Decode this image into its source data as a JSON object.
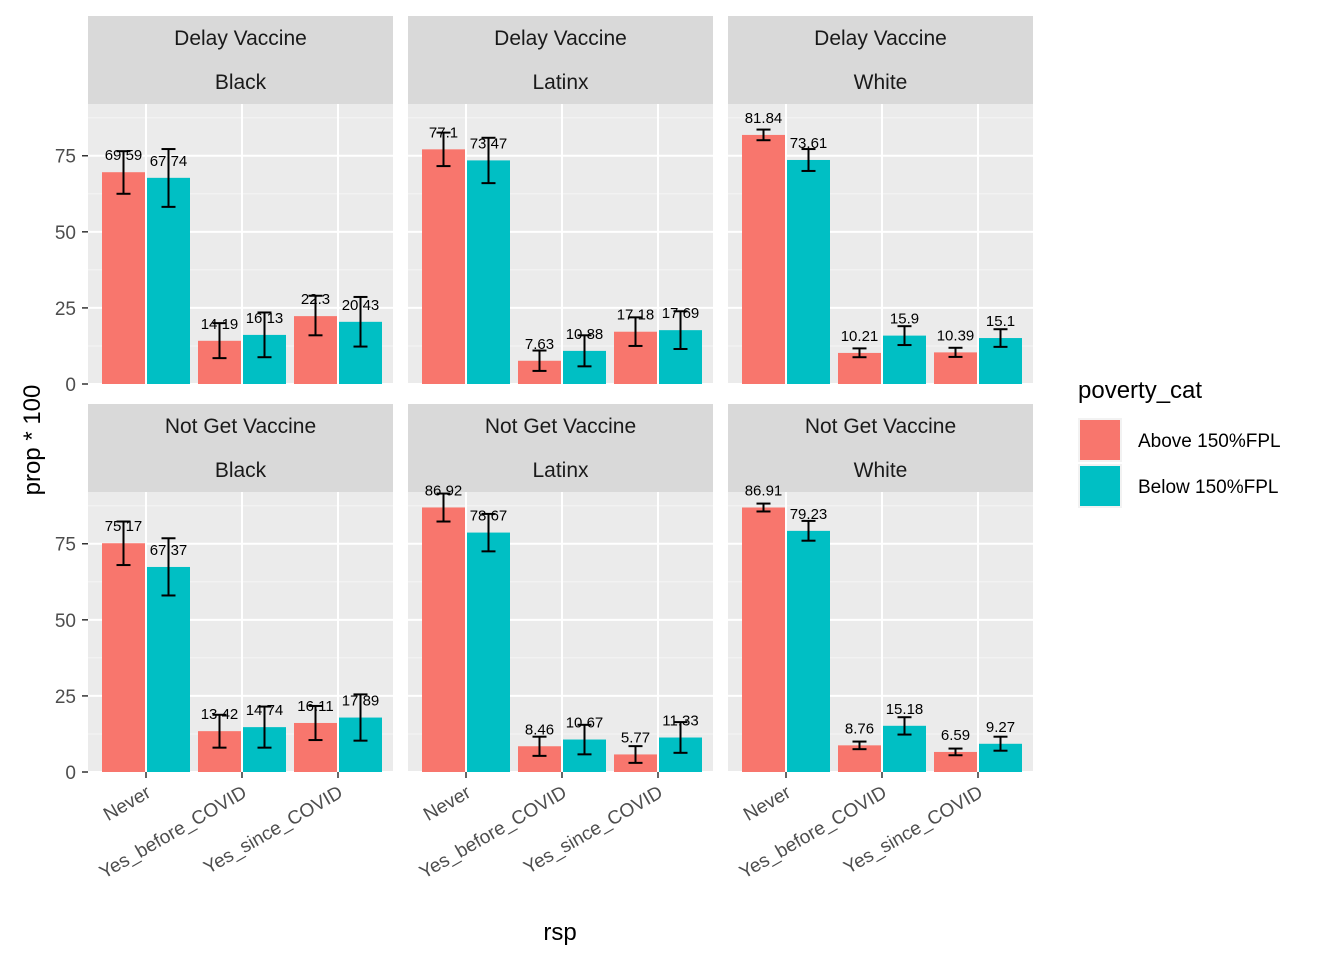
{
  "chart_data": {
    "type": "bar",
    "facet_rows": [
      "Delay Vaccine",
      "Not Get Vaccine"
    ],
    "facet_cols": [
      "Black",
      "Latinx",
      "White"
    ],
    "categories": [
      "Never",
      "Yes_before_COVID",
      "Yes_since_COVID"
    ],
    "xlabel": "rsp",
    "ylabel": "prop * 100",
    "ylim": [
      0,
      92
    ],
    "yticks": [
      0,
      25,
      50,
      75
    ],
    "legend": {
      "title": "poverty_cat",
      "position": "right",
      "entries": [
        "Above 150%FPL",
        "Below 150%FPL"
      ]
    },
    "colors": {
      "Above 150%FPL": "#F8766D",
      "Below 150%FPL": "#00BFC4"
    },
    "grid": true,
    "panels": [
      {
        "row": "Delay Vaccine",
        "col": "Black",
        "series": [
          {
            "name": "Above 150%FPL",
            "values": [
              69.59,
              14.19,
              22.3
            ],
            "labels": [
              "69.59",
              "14.19",
              "22.3"
            ],
            "err_low": [
              62.5,
              8.5,
              16
            ],
            "err_high": [
              76.5,
              20,
              29
            ]
          },
          {
            "name": "Below 150%FPL",
            "values": [
              67.74,
              16.13,
              20.43
            ],
            "labels": [
              "67.74",
              "16.13",
              "20.43"
            ],
            "err_low": [
              58.2,
              8.8,
              12.3
            ],
            "err_high": [
              77.2,
              23.5,
              28.6
            ]
          }
        ]
      },
      {
        "row": "Delay Vaccine",
        "col": "Latinx",
        "series": [
          {
            "name": "Above 150%FPL",
            "values": [
              77.1,
              7.63,
              17.18
            ],
            "labels": [
              "77.1",
              "7.63",
              "17.18"
            ],
            "err_low": [
              71.6,
              4.3,
              12.5
            ],
            "err_high": [
              82.6,
              11,
              21.9
            ]
          },
          {
            "name": "Below 150%FPL",
            "values": [
              73.47,
              10.88,
              17.69
            ],
            "labels": [
              "73.47",
              "10.88",
              "17.69"
            ],
            "err_low": [
              66,
              5.8,
              11.5
            ],
            "err_high": [
              80.9,
              16,
              23.9
            ]
          }
        ]
      },
      {
        "row": "Delay Vaccine",
        "col": "White",
        "series": [
          {
            "name": "Above 150%FPL",
            "values": [
              81.84,
              10.21,
              10.39
            ],
            "labels": [
              "81.84",
              "10.21",
              "10.39"
            ],
            "err_low": [
              80.1,
              8.8,
              8.9
            ],
            "err_high": [
              83.6,
              11.7,
              11.9
            ]
          },
          {
            "name": "Below 150%FPL",
            "values": [
              73.61,
              15.9,
              15.1
            ],
            "labels": [
              "73.61",
              "15.9",
              "15.1"
            ],
            "err_low": [
              70,
              12.8,
              12.2
            ],
            "err_high": [
              77.2,
              19,
              18
            ]
          }
        ]
      },
      {
        "row": "Not Get Vaccine",
        "col": "Black",
        "series": [
          {
            "name": "Above 150%FPL",
            "values": [
              75.17,
              13.42,
              16.11
            ],
            "labels": [
              "75.17",
              "13.42",
              "16.11"
            ],
            "err_low": [
              68,
              8,
              10.5
            ],
            "err_high": [
              82.3,
              18.8,
              21.7
            ]
          },
          {
            "name": "Below 150%FPL",
            "values": [
              67.37,
              14.74,
              17.89
            ],
            "labels": [
              "67.37",
              "14.74",
              "17.89"
            ],
            "err_low": [
              58,
              8,
              10.3
            ],
            "err_high": [
              76.8,
              21.5,
              25.5
            ]
          }
        ]
      },
      {
        "row": "Not Get Vaccine",
        "col": "Latinx",
        "series": [
          {
            "name": "Above 150%FPL",
            "values": [
              86.92,
              8.46,
              5.77
            ],
            "labels": [
              "86.92",
              "8.46",
              "5.77"
            ],
            "err_low": [
              82.3,
              5.3,
              3
            ],
            "err_high": [
              91.5,
              11.6,
              8.5
            ]
          },
          {
            "name": "Below 150%FPL",
            "values": [
              78.67,
              10.67,
              11.33
            ],
            "labels": [
              "78.67",
              "10.67",
              "11.33"
            ],
            "err_low": [
              72.5,
              5.8,
              6.3
            ],
            "err_high": [
              84.8,
              15.5,
              16.4
            ]
          }
        ]
      },
      {
        "row": "Not Get Vaccine",
        "col": "White",
        "series": [
          {
            "name": "Above 150%FPL",
            "values": [
              86.91,
              8.76,
              6.59
            ],
            "labels": [
              "86.91",
              "8.76",
              "6.59"
            ],
            "err_low": [
              85.6,
              7.5,
              5.5
            ],
            "err_high": [
              88.2,
              10,
              7.7
            ]
          },
          {
            "name": "Below 150%FPL",
            "values": [
              79.23,
              15.18,
              9.27
            ],
            "labels": [
              "79.23",
              "15.18",
              "9.27"
            ],
            "err_low": [
              76,
              12.3,
              7
            ],
            "err_high": [
              82.5,
              18,
              11.6
            ]
          }
        ]
      }
    ]
  }
}
